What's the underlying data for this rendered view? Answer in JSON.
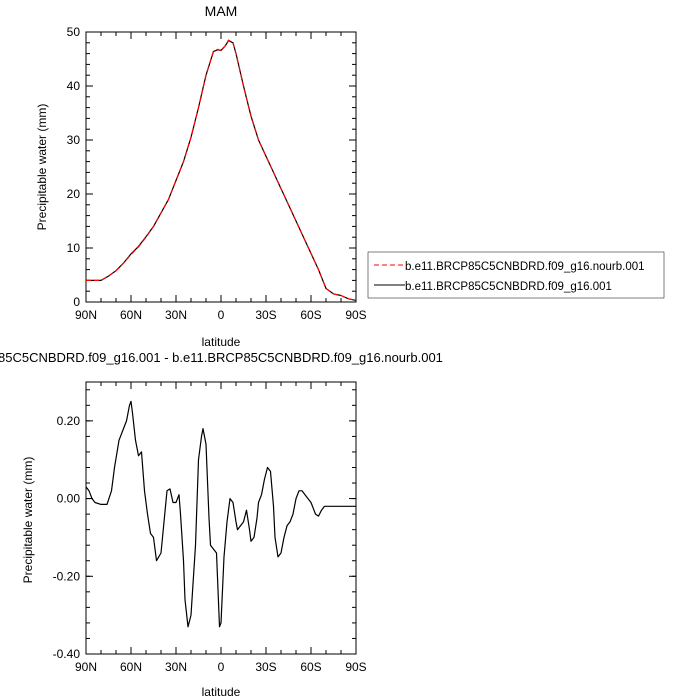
{
  "chart_data": [
    {
      "type": "line",
      "title": "MAM",
      "xlabel": "latitude",
      "ylabel": "Precipitable water (mm)",
      "xlim": [
        90,
        -90
      ],
      "ylim": [
        0,
        50
      ],
      "x_ticks": [
        90,
        60,
        30,
        0,
        -30,
        -60,
        -90
      ],
      "x_tick_labels": [
        "90N",
        "60N",
        "30N",
        "0",
        "30S",
        "60S",
        "90S"
      ],
      "y_ticks": [
        0,
        10,
        20,
        30,
        40,
        50
      ],
      "y_tick_labels": [
        "0",
        "10",
        "20",
        "30",
        "40",
        "50"
      ],
      "legend_position": "right",
      "series": [
        {
          "name": "b.e11.BRCP85C5CNBDRD.f09_g16.nourb.001",
          "color": "#ff0000",
          "dash": "dashed",
          "x": [
            90,
            85,
            80,
            75,
            70,
            65,
            60,
            55,
            50,
            45,
            40,
            35,
            30,
            25,
            20,
            15,
            10,
            5,
            2,
            0,
            -3,
            -5,
            -8,
            -10,
            -15,
            -20,
            -25,
            -30,
            -35,
            -40,
            -45,
            -50,
            -55,
            -60,
            -65,
            -70,
            -75,
            -80,
            -85,
            -90
          ],
          "values": [
            4.0,
            4.0,
            4.0,
            4.8,
            5.8,
            7.2,
            8.8,
            10.2,
            12.0,
            14.0,
            16.5,
            19.0,
            22.5,
            26.0,
            30.5,
            36.0,
            42.0,
            46.5,
            46.8,
            46.5,
            47.5,
            48.5,
            48.0,
            46.0,
            40.0,
            34.5,
            30.0,
            27.0,
            24.0,
            21.0,
            18.0,
            15.0,
            12.0,
            9.0,
            6.0,
            2.5,
            1.5,
            1.2,
            0.6,
            0.3
          ]
        },
        {
          "name": "b.e11.BRCP85C5CNBDRD.f09_g16.001",
          "color": "#000000",
          "dash": "solid",
          "x": [
            90,
            85,
            80,
            75,
            70,
            65,
            60,
            55,
            50,
            45,
            40,
            35,
            30,
            25,
            20,
            15,
            10,
            5,
            2,
            0,
            -3,
            -5,
            -8,
            -10,
            -15,
            -20,
            -25,
            -30,
            -35,
            -40,
            -45,
            -50,
            -55,
            -60,
            -65,
            -70,
            -75,
            -80,
            -85,
            -90
          ],
          "values": [
            4.0,
            4.0,
            4.0,
            4.8,
            5.8,
            7.2,
            8.9,
            10.3,
            12.1,
            14.0,
            16.5,
            19.0,
            22.5,
            26.0,
            30.5,
            36.0,
            42.0,
            46.4,
            46.7,
            46.6,
            47.5,
            48.4,
            48.0,
            46.0,
            40.0,
            34.4,
            30.0,
            27.0,
            24.0,
            21.0,
            18.0,
            15.0,
            12.0,
            9.0,
            6.0,
            2.5,
            1.5,
            1.2,
            0.6,
            0.3
          ]
        }
      ]
    },
    {
      "type": "line",
      "title": "85C5CNBDRD.f09_g16.001 - b.e11.BRCP85C5CNBDRD.f09_g16.nourb.001",
      "xlabel": "latitude",
      "ylabel": "Precipitable water (mm)",
      "xlim": [
        90,
        -90
      ],
      "ylim": [
        -0.4,
        0.3
      ],
      "x_ticks": [
        90,
        60,
        30,
        0,
        -30,
        -60,
        -90
      ],
      "x_tick_labels": [
        "90N",
        "60N",
        "30N",
        "0",
        "30S",
        "60S",
        "90S"
      ],
      "y_ticks": [
        -0.4,
        -0.2,
        0.0,
        0.2
      ],
      "y_tick_labels": [
        "-0.40",
        "-0.20",
        "0.00",
        "0.20"
      ],
      "series": [
        {
          "color": "#000000",
          "dash": "solid",
          "x": [
            90,
            88,
            86,
            84,
            80,
            76,
            73,
            71,
            68,
            65,
            63,
            61,
            60,
            59,
            57,
            55,
            53,
            51,
            49,
            47,
            45,
            43,
            40,
            38,
            36,
            34,
            32,
            30,
            28,
            27,
            25,
            24,
            22,
            20,
            17,
            15,
            13,
            12,
            10,
            8,
            7,
            5,
            3,
            1,
            0,
            -2,
            -4,
            -6,
            -8,
            -10,
            -11,
            -13,
            -15,
            -17,
            -19,
            -20,
            -22,
            -24,
            -25,
            -27,
            -29,
            -31,
            -33,
            -35,
            -36,
            -38,
            -40,
            -42,
            -44,
            -46,
            -48,
            -50,
            -52,
            -54,
            -56,
            -58,
            -60,
            -62,
            -63,
            -65,
            -67,
            -69,
            -71,
            -73,
            -76,
            -79,
            -82,
            -85,
            -88,
            -90
          ],
          "values": [
            0.03,
            0.02,
            -0.0,
            -0.01,
            -0.015,
            -0.015,
            0.02,
            0.08,
            0.15,
            0.18,
            0.2,
            0.24,
            0.25,
            0.22,
            0.15,
            0.11,
            0.12,
            0.02,
            -0.04,
            -0.09,
            -0.1,
            -0.16,
            -0.14,
            -0.06,
            0.02,
            0.025,
            -0.01,
            -0.01,
            0.01,
            -0.04,
            -0.16,
            -0.26,
            -0.33,
            -0.3,
            -0.12,
            0.1,
            0.16,
            0.18,
            0.14,
            -0.05,
            -0.12,
            -0.13,
            -0.14,
            -0.33,
            -0.32,
            -0.15,
            -0.06,
            0.0,
            -0.01,
            -0.06,
            -0.08,
            -0.07,
            -0.06,
            -0.03,
            -0.08,
            -0.11,
            -0.1,
            -0.05,
            -0.01,
            0.01,
            0.05,
            0.08,
            0.07,
            -0.02,
            -0.1,
            -0.15,
            -0.14,
            -0.1,
            -0.07,
            -0.06,
            -0.04,
            0.0,
            0.02,
            0.02,
            0.01,
            0.0,
            -0.01,
            -0.03,
            -0.04,
            -0.045,
            -0.03,
            -0.02,
            -0.02,
            -0.02,
            -0.02,
            -0.02,
            -0.02,
            -0.02,
            -0.02,
            -0.02
          ]
        }
      ]
    }
  ]
}
